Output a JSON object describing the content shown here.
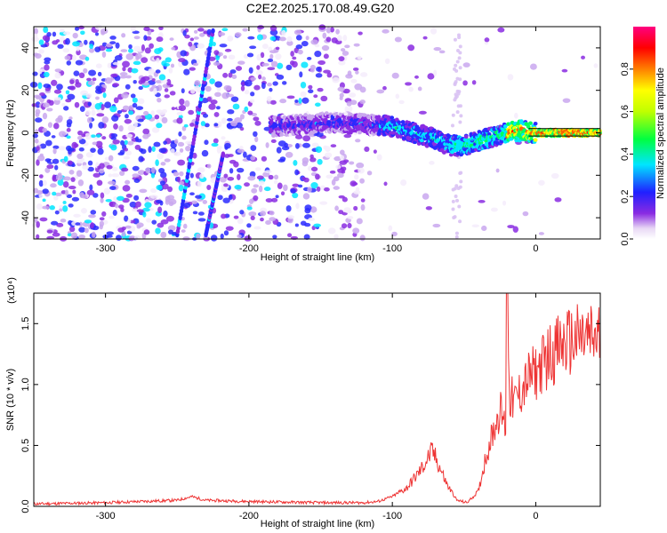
{
  "title": "C2E2.2025.170.08.49.G20",
  "chart_data": [
    {
      "type": "heatmap",
      "xlabel": "Height of straight line (km)",
      "ylabel": "Frequency (Hz)",
      "xlim": [
        -350,
        45
      ],
      "ylim": [
        -50,
        50
      ],
      "xticks": [
        -300,
        -200,
        -100,
        0
      ],
      "yticks": [
        -40,
        -20,
        0,
        20,
        40
      ],
      "colorbar": {
        "label": "Normalized spectral amplitude",
        "range": [
          0,
          1
        ],
        "ticks": [
          0.0,
          0.2,
          0.4,
          0.6,
          0.8
        ],
        "tick_labels": [
          "0.0",
          "0.2",
          "0.4",
          "0.6",
          "0.8"
        ]
      },
      "ridge": {
        "x": [
          -185,
          -160,
          -140,
          -120,
          -100,
          -90,
          -80,
          -70,
          -60,
          -50,
          -40,
          -30,
          -20,
          -10,
          0,
          45
        ],
        "y": [
          3,
          4,
          5,
          4,
          3,
          1,
          -1,
          -3,
          -6,
          -6,
          -4,
          -2,
          0,
          1,
          0,
          0
        ]
      },
      "streaks": [
        {
          "x": [
            -250,
            -225
          ],
          "y": [
            -48,
            48
          ]
        },
        {
          "x": [
            -230,
            -218
          ],
          "y": [
            -48,
            -10
          ]
        }
      ]
    },
    {
      "type": "line",
      "xlabel": "Height of straight line (km)",
      "ylabel": "SNR (10 * v/v)",
      "multiplier": "(x10⁴)",
      "xlim": [
        -350,
        45
      ],
      "ylim": [
        0,
        1.75
      ],
      "xticks": [
        -300,
        -200,
        -100,
        0
      ],
      "yticks": [
        0.0,
        0.5,
        1.0,
        1.5
      ],
      "ytick_labels": [
        "0.0",
        "0.5",
        "1.0",
        "1.5"
      ],
      "color": "#ee3333",
      "x": [
        -350,
        -300,
        -250,
        -240,
        -230,
        -200,
        -150,
        -120,
        -110,
        -100,
        -90,
        -80,
        -75,
        -72,
        -68,
        -62,
        -55,
        -48,
        -40,
        -35,
        -30,
        -25,
        -21,
        -20,
        -18,
        -15,
        -10,
        -5,
        0,
        10,
        20,
        30,
        45
      ],
      "y": [
        0.02,
        0.03,
        0.05,
        0.08,
        0.05,
        0.04,
        0.03,
        0.03,
        0.04,
        0.08,
        0.15,
        0.3,
        0.4,
        0.45,
        0.35,
        0.18,
        0.05,
        0.03,
        0.12,
        0.4,
        0.6,
        0.8,
        0.65,
        1.75,
        0.9,
        0.85,
        0.95,
        1.05,
        1.1,
        1.25,
        1.33,
        1.37,
        1.38
      ]
    }
  ]
}
